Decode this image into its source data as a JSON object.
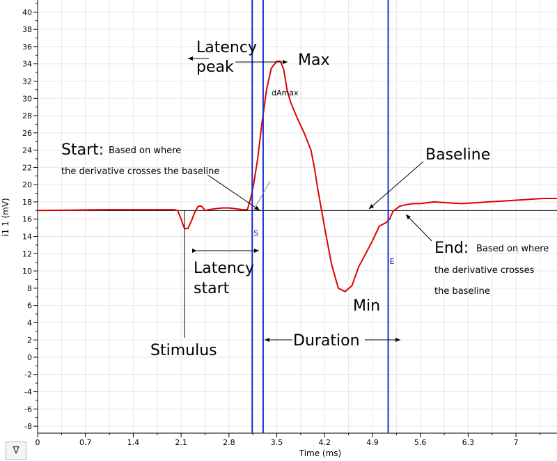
{
  "chart_data": {
    "type": "line",
    "xlabel": "Time (ms)",
    "ylabel": "i1 1 (mV)",
    "xlim": [
      0,
      7.6
    ],
    "ylim": [
      -8.8,
      41.4
    ],
    "x_ticks": [
      "0",
      "0.7",
      "1.4",
      "2.1",
      "2.8",
      "3.5",
      "4.2",
      "4.9",
      "5.6",
      "6.3",
      "7"
    ],
    "y_ticks": [
      "-8",
      "-6",
      "-4",
      "-2",
      "0",
      "2",
      "4",
      "6",
      "8",
      "10",
      "12",
      "14",
      "16",
      "18",
      "20",
      "22",
      "24",
      "26",
      "28",
      "30",
      "32",
      "34",
      "36",
      "38",
      "40"
    ],
    "grid": true,
    "baseline": 17.0,
    "series": [
      {
        "color": "#e00000",
        "x": [
          0,
          0.5,
          1.0,
          1.5,
          2.0,
          2.05,
          2.1,
          2.15,
          2.2,
          2.25,
          2.3,
          2.35,
          2.4,
          2.45,
          2.5,
          2.6,
          2.7,
          2.8,
          2.9,
          3.0,
          3.07,
          3.12,
          3.16,
          3.22,
          3.28,
          3.35,
          3.42,
          3.5,
          3.55,
          3.6,
          3.65,
          3.7,
          3.8,
          3.9,
          4.0,
          4.05,
          4.1,
          4.2,
          4.3,
          4.4,
          4.5,
          4.6,
          4.7,
          4.8,
          4.9,
          5.0,
          5.1,
          5.15,
          5.2,
          5.3,
          5.4,
          5.5,
          5.6,
          5.8,
          6.0,
          6.2,
          6.4,
          6.6,
          6.8,
          7.0,
          7.2,
          7.4,
          7.6
        ],
        "values": [
          17.0,
          17.05,
          17.1,
          17.1,
          17.1,
          17.0,
          16.0,
          14.9,
          14.9,
          15.8,
          16.8,
          17.5,
          17.5,
          17.0,
          17.1,
          17.2,
          17.3,
          17.3,
          17.2,
          17.1,
          17.1,
          18.5,
          20.0,
          23.0,
          27.0,
          31.0,
          33.5,
          34.3,
          34.3,
          33.4,
          31.0,
          29.6,
          27.7,
          26.0,
          24.0,
          22.0,
          19.5,
          15.0,
          10.8,
          8.0,
          7.6,
          8.3,
          10.5,
          12.0,
          13.5,
          15.2,
          15.6,
          16.0,
          16.9,
          17.5,
          17.7,
          17.8,
          17.8,
          18.0,
          17.9,
          17.8,
          17.9,
          18.0,
          18.1,
          18.2,
          18.3,
          18.4,
          18.4
        ]
      }
    ],
    "markers": [
      {
        "x": 3.14,
        "label": "S"
      },
      {
        "x": 3.3,
        "label": ""
      },
      {
        "x": 5.13,
        "label": "E"
      }
    ],
    "annotations": {
      "latency_peak": [
        "Latency",
        "peak"
      ],
      "max": "Max",
      "damax": "dAmax",
      "start_head": "Start:",
      "start_desc1": "Based on where",
      "start_desc2": "the derivative crosses the baseline",
      "baseline": "Baseline",
      "end_head": "End:",
      "end_desc1": "Based on where",
      "end_desc2": "the derivative crosses",
      "end_desc3": "the baseline",
      "latency_start": [
        "Latency",
        "start"
      ],
      "min": "Min",
      "stimulus": "Stimulus",
      "duration": "Duration"
    }
  },
  "controls": {
    "menu_icon": "triangle-down-icon",
    "menu_glyph": "∇"
  }
}
